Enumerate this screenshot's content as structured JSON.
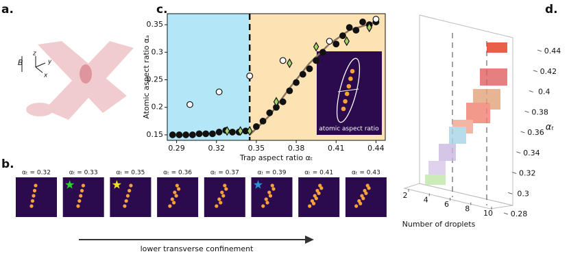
{
  "panel_labels": [
    "a.",
    "b.",
    "c.",
    "d."
  ],
  "panel_a": {
    "axis_labels": [
      "B",
      "z",
      "y",
      "x"
    ]
  },
  "panel_b": {
    "image_labels": [
      "αₜ = 0.32",
      "αₜ = 0.33",
      "αₜ = 0.35",
      "αₜ = 0.36",
      "αₜ = 0.37",
      "αₜ = 0.39",
      "αₜ = 0.41",
      "αₜ = 0.43"
    ],
    "arrow_label": "lower transverse confinement"
  },
  "chart_data": [
    {
      "type": "scatter",
      "xlabel": "Trap aspect ratio αₜ",
      "ylabel": "Atomic aspect ratio αₐ",
      "xlim": [
        0.283,
        0.447
      ],
      "ylim": [
        0.14,
        0.37
      ],
      "xticks": [
        0.29,
        0.32,
        0.35,
        0.38,
        0.41,
        0.44
      ],
      "yticks": [
        0.15,
        0.2,
        0.25,
        0.3,
        0.35
      ],
      "divider": 0.345,
      "region_colors": [
        "#b3e6f7",
        "#fde2b4"
      ],
      "inset_label": "atomic aspect ratio",
      "series": [
        {
          "marker": "filled",
          "color": "#111111",
          "x": [
            0.287,
            0.292,
            0.297,
            0.302,
            0.307,
            0.312,
            0.317,
            0.322,
            0.327,
            0.332,
            0.337,
            0.342,
            0.35,
            0.355,
            0.36,
            0.365,
            0.37,
            0.375,
            0.38,
            0.385,
            0.39,
            0.395,
            0.4,
            0.41,
            0.415,
            0.42,
            0.425,
            0.43,
            0.435,
            0.44
          ],
          "values": [
            0.15,
            0.15,
            0.15,
            0.15,
            0.152,
            0.152,
            0.152,
            0.155,
            0.158,
            0.155,
            0.155,
            0.157,
            0.165,
            0.175,
            0.19,
            0.2,
            0.21,
            0.23,
            0.245,
            0.26,
            0.27,
            0.285,
            0.3,
            0.315,
            0.33,
            0.345,
            0.34,
            0.355,
            0.35,
            0.355
          ]
        },
        {
          "marker": "open",
          "color": "#ffffff",
          "x": [
            0.3,
            0.322,
            0.345,
            0.37,
            0.405,
            0.44
          ],
          "values": [
            0.205,
            0.228,
            0.257,
            0.285,
            0.32,
            0.36
          ]
        },
        {
          "marker": "diamond",
          "color": "#a6d46a",
          "x": [
            0.328,
            0.338,
            0.345,
            0.365,
            0.375,
            0.395,
            0.418,
            0.435
          ],
          "values": [
            0.157,
            0.157,
            0.157,
            0.21,
            0.28,
            0.31,
            0.32,
            0.345
          ]
        },
        {
          "marker": "line",
          "color": "#8a7560",
          "x": [
            0.345,
            0.36,
            0.375,
            0.39,
            0.405,
            0.42,
            0.44
          ],
          "values": [
            0.15,
            0.185,
            0.235,
            0.28,
            0.315,
            0.34,
            0.355
          ]
        }
      ]
    },
    {
      "type": "bar3d",
      "xlabel": "Number of droplets",
      "ylabel": "αₜ",
      "xlim": [
        2,
        10
      ],
      "ylim": [
        0.28,
        0.44
      ],
      "xticks": [
        2,
        4,
        6,
        8,
        10
      ],
      "yticks": [
        0.28,
        0.3,
        0.32,
        0.34,
        0.36,
        0.38,
        0.4,
        0.42,
        0.44
      ]
    }
  ]
}
